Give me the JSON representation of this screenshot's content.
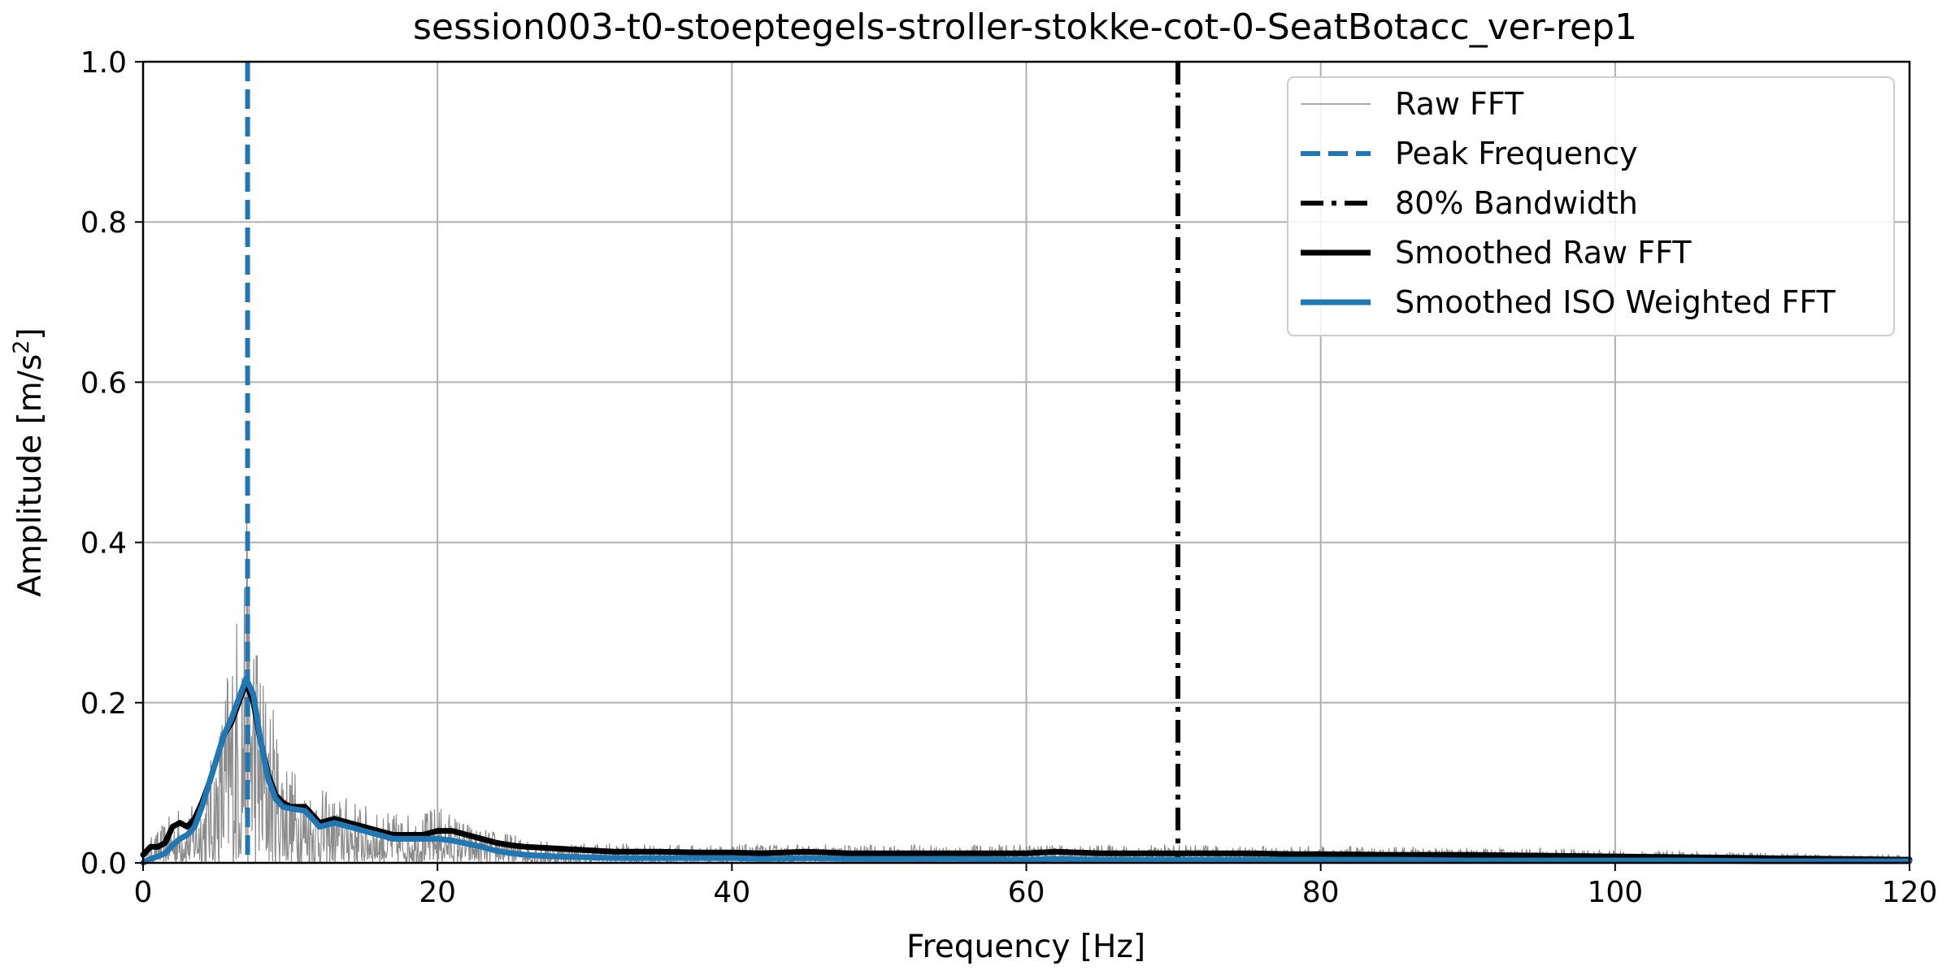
{
  "chart_data": {
    "type": "line",
    "title": "session003-t0-stoeptegels-stroller-stokke-cot-0-SeatBotacc_ver-rep1",
    "xlabel": "Frequency [Hz]",
    "ylabel_main": "Amplitude [m/s",
    "ylabel_sup": "2",
    "ylabel_end": "]",
    "xlim": [
      0,
      120
    ],
    "ylim": [
      0,
      1.0
    ],
    "xticks": [
      "0",
      "20",
      "40",
      "60",
      "80",
      "100",
      "120"
    ],
    "xtick_values": [
      0,
      20,
      40,
      60,
      80,
      100,
      120
    ],
    "yticks": [
      "0.0",
      "0.2",
      "0.4",
      "0.6",
      "0.8",
      "1.0"
    ],
    "ytick_values": [
      0.0,
      0.2,
      0.4,
      0.6,
      0.8,
      1.0
    ],
    "grid": true,
    "legend_position": "top-right",
    "series": [
      {
        "name": "Raw FFT",
        "style": "thin-gray",
        "color": "#8c8c8c",
        "noisy": true,
        "x": [
          0,
          0.5,
          1,
          2,
          2.5,
          3,
          4,
          5,
          5.5,
          6,
          6.5,
          7,
          7.5,
          8,
          9,
          10,
          11,
          12,
          13,
          14,
          15,
          16,
          17,
          18,
          19,
          20,
          21,
          22,
          23,
          24,
          25,
          26,
          28,
          30,
          35,
          40,
          45,
          50,
          55,
          60,
          65,
          70,
          75,
          80,
          85,
          90,
          95,
          100,
          105,
          110,
          115,
          120
        ],
        "y": [
          0.005,
          0.03,
          0.04,
          0.06,
          0.07,
          0.06,
          0.09,
          0.15,
          0.22,
          0.28,
          0.33,
          0.42,
          0.35,
          0.25,
          0.18,
          0.12,
          0.1,
          0.09,
          0.08,
          0.08,
          0.07,
          0.06,
          0.06,
          0.06,
          0.06,
          0.07,
          0.06,
          0.05,
          0.04,
          0.04,
          0.035,
          0.03,
          0.025,
          0.025,
          0.022,
          0.022,
          0.022,
          0.022,
          0.022,
          0.022,
          0.022,
          0.022,
          0.02,
          0.02,
          0.02,
          0.018,
          0.018,
          0.015,
          0.015,
          0.012,
          0.01,
          0.01
        ]
      },
      {
        "name": "Peak Frequency",
        "style": "dashed-vertical",
        "color": "#1f77b4",
        "x": 7.1
      },
      {
        "name": "80% Bandwidth",
        "style": "dashdot-vertical",
        "color": "#000000",
        "x": 70.3
      },
      {
        "name": "Smoothed Raw FFT",
        "style": "thick",
        "color": "#000000",
        "x": [
          0,
          0.5,
          1,
          1.5,
          2,
          2.5,
          3,
          3.5,
          4,
          4.5,
          5,
          5.5,
          6,
          6.5,
          7,
          7.5,
          8,
          8.5,
          9,
          9.5,
          10,
          11,
          12,
          13,
          14,
          15,
          16,
          17,
          18,
          19,
          20,
          21,
          22,
          23,
          24,
          25,
          26,
          28,
          30,
          32,
          35,
          38,
          40,
          42,
          45,
          48,
          50,
          55,
          60,
          62,
          65,
          70,
          75,
          78,
          80,
          85,
          90,
          95,
          100,
          105,
          110,
          115,
          120
        ],
        "y": [
          0.01,
          0.02,
          0.02,
          0.025,
          0.045,
          0.05,
          0.045,
          0.055,
          0.075,
          0.1,
          0.13,
          0.16,
          0.175,
          0.2,
          0.225,
          0.2,
          0.15,
          0.11,
          0.085,
          0.075,
          0.07,
          0.07,
          0.05,
          0.055,
          0.05,
          0.045,
          0.04,
          0.035,
          0.035,
          0.035,
          0.04,
          0.04,
          0.035,
          0.03,
          0.025,
          0.022,
          0.02,
          0.018,
          0.016,
          0.014,
          0.014,
          0.013,
          0.013,
          0.012,
          0.014,
          0.012,
          0.012,
          0.012,
          0.012,
          0.014,
          0.012,
          0.012,
          0.012,
          0.011,
          0.011,
          0.01,
          0.01,
          0.009,
          0.008,
          0.007,
          0.006,
          0.005,
          0.004
        ]
      },
      {
        "name": "Smoothed ISO Weighted FFT",
        "style": "thick",
        "color": "#1f77b4",
        "x": [
          0,
          0.5,
          1,
          1.5,
          2,
          2.5,
          3,
          3.5,
          4,
          4.5,
          5,
          5.5,
          6,
          6.5,
          7,
          7.5,
          8,
          8.5,
          9,
          9.5,
          10,
          11,
          12,
          13,
          14,
          15,
          16,
          17,
          18,
          19,
          20,
          21,
          22,
          23,
          24,
          25,
          26,
          28,
          30,
          32,
          35,
          38,
          40,
          42,
          45,
          48,
          50,
          55,
          60,
          62,
          65,
          70,
          75,
          78,
          80,
          85,
          90,
          95,
          100,
          105,
          110,
          115,
          120
        ],
        "y": [
          0.0,
          0.005,
          0.008,
          0.012,
          0.022,
          0.03,
          0.035,
          0.045,
          0.07,
          0.1,
          0.13,
          0.16,
          0.18,
          0.205,
          0.23,
          0.21,
          0.15,
          0.105,
          0.08,
          0.07,
          0.068,
          0.065,
          0.045,
          0.05,
          0.045,
          0.04,
          0.035,
          0.03,
          0.03,
          0.03,
          0.03,
          0.028,
          0.024,
          0.02,
          0.015,
          0.012,
          0.01,
          0.008,
          0.007,
          0.006,
          0.006,
          0.006,
          0.006,
          0.005,
          0.006,
          0.005,
          0.005,
          0.005,
          0.004,
          0.005,
          0.004,
          0.004,
          0.004,
          0.004,
          0.004,
          0.004,
          0.003,
          0.003,
          0.003,
          0.003,
          0.002,
          0.002,
          0.002
        ]
      }
    ]
  }
}
